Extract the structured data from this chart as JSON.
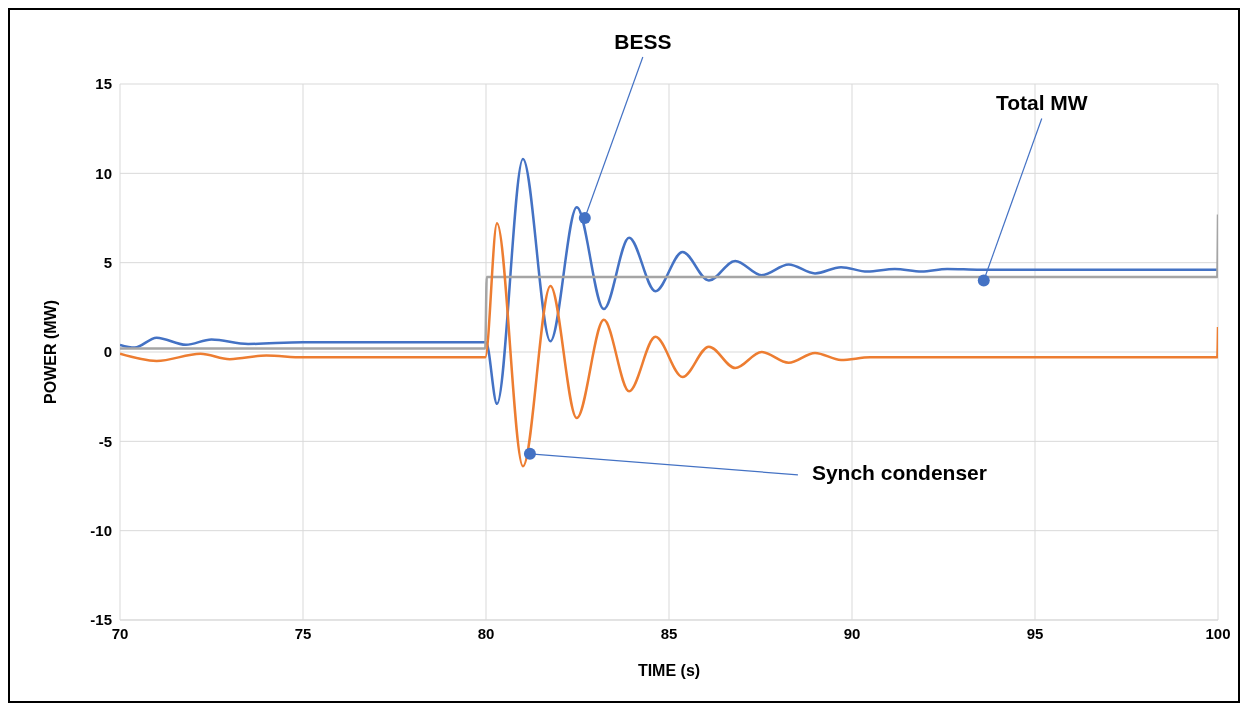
{
  "chart_data": {
    "type": "line",
    "xlabel": "TIME (s)",
    "ylabel": "POWER (MW)",
    "xlim": [
      70,
      100
    ],
    "xticks": [
      70,
      75,
      80,
      85,
      90,
      95,
      100
    ],
    "ylim": [
      -15,
      15
    ],
    "yticks": [
      -15,
      -10,
      -5,
      0,
      5,
      10,
      15
    ],
    "grid": true,
    "legend": false,
    "marker": "none",
    "line_style": "solid",
    "series": [
      {
        "color": "#4472c4",
        "x": [
          70,
          70.4,
          71,
          71.8,
          72.5,
          73.5,
          75,
          80,
          80.3,
          81.01,
          81.76,
          82.48,
          83.22,
          83.91,
          84.63,
          85.37,
          86.09,
          86.81,
          87.53,
          88.27,
          88.99,
          89.7,
          90.42,
          91.17,
          91.9,
          92.6,
          93.5,
          100
        ],
        "values": [
          0.4,
          0.25,
          0.8,
          0.4,
          0.7,
          0.45,
          0.55,
          0.55,
          -2.9,
          10.8,
          0.6,
          8.1,
          2.4,
          6.4,
          3.4,
          5.6,
          4.0,
          5.1,
          4.3,
          4.9,
          4.4,
          4.75,
          4.5,
          4.65,
          4.5,
          4.65,
          4.6,
          4.6
        ]
      },
      {
        "color": "#a5a5a5",
        "x": [
          70,
          79.98,
          80.02,
          99.98,
          100
        ],
        "values": [
          0.2,
          0.2,
          4.2,
          4.2,
          7.7
        ]
      },
      {
        "color": "#ed7d31",
        "x": [
          70,
          71,
          72.2,
          73,
          74,
          75,
          79.98,
          80.3,
          81.01,
          81.76,
          82.48,
          83.22,
          83.91,
          84.63,
          85.37,
          86.09,
          86.81,
          87.53,
          88.27,
          88.99,
          89.7,
          90.5,
          99.98,
          100
        ],
        "values": [
          -0.1,
          -0.5,
          -0.1,
          -0.4,
          -0.2,
          -0.3,
          -0.3,
          7.2,
          -6.4,
          3.7,
          -3.7,
          1.8,
          -2.2,
          0.85,
          -1.4,
          0.3,
          -0.9,
          0.0,
          -0.6,
          -0.05,
          -0.45,
          -0.3,
          -0.3,
          1.4
        ]
      }
    ],
    "annotations": [
      {
        "text": "BESS",
        "x": 82.7,
        "y": 7.5
      },
      {
        "text": "Total MW",
        "x": 93.6,
        "y": 4.0
      },
      {
        "text": "Synch condenser",
        "x": 81.2,
        "y": -5.7
      }
    ]
  }
}
